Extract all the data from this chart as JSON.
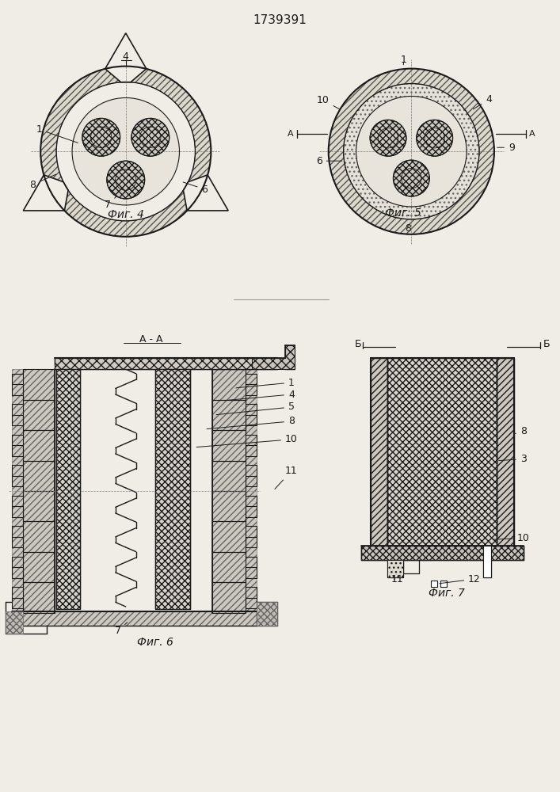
{
  "title": "1739391",
  "bg_color": "#f0ede6",
  "line_color": "#1a1a1a",
  "fig4_label": "Фиг. 4",
  "fig5_label": "Фиг. 5",
  "fig6_label": "Фиг. 6",
  "fig7_label": "Фиг. 7"
}
